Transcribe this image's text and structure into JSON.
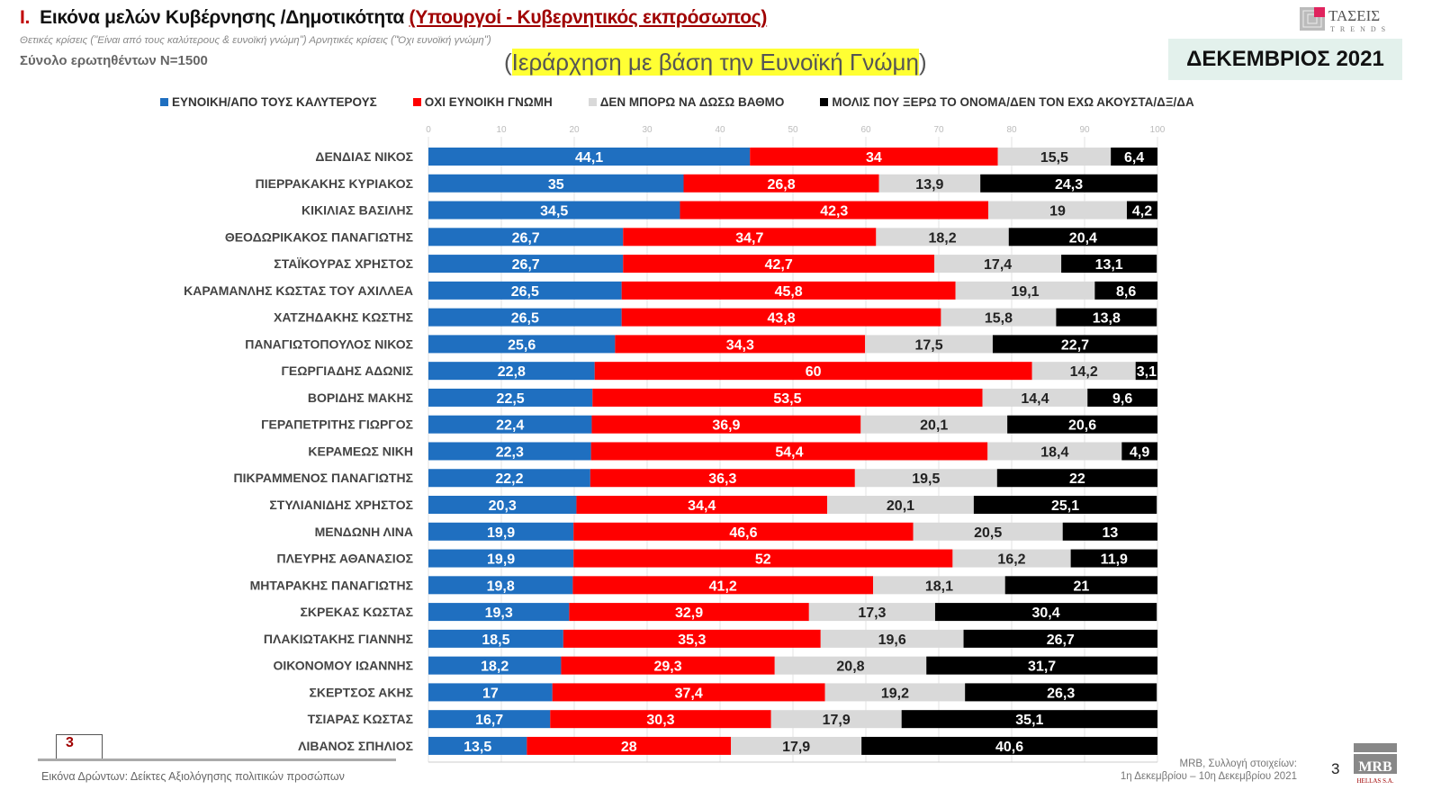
{
  "header": {
    "title_num": "I.",
    "title": "Εικόνα μελών Κυβέρνησης /Δημοτικότητα",
    "title_sub": "(Υπουργοί - Κυβερνητικός εκπρόσωπος)",
    "note": "Θετικές κρίσεις (\"Είναι από τους καλύτερους & ευνοϊκή γνώμη\")  Αρνητικές κρίσεις (\"Όχι ευνοϊκή γνώμη\")",
    "sample": "Σύνολο ερωτηθέντων Ν=1500",
    "rank_open": "(",
    "rank": "Ιεράρχηση με βάση την Ευνοϊκή Γνώμη",
    "rank_close": ")",
    "month": "ΔΕΚΕΜΒΡΙΟΣ 2021",
    "logo_text": "ΤΑΣΕΙΣ TRENDS"
  },
  "footer": {
    "page_box": "3",
    "caption": "Εικόνα Δρώντων: Δείκτες Αξιολόγησης πολιτικών προσώπων",
    "source_line1": "MRB, Συλλογή στοιχείων:",
    "source_line2": "1η Δεκεμβρίου – 10η Δεκεμβρίου 2021",
    "page_number": "3",
    "mrb_logo": "MRB HELLAS S.A."
  },
  "chart_data": {
    "type": "bar",
    "orientation": "horizontal-stacked",
    "xlim": [
      0,
      100
    ],
    "xticks": [
      0,
      10,
      20,
      30,
      40,
      50,
      60,
      70,
      80,
      90,
      100
    ],
    "grid": true,
    "legend_position": "top",
    "categories": [
      "ΔΕΝΔΙΑΣ ΝΙΚΟΣ",
      "ΠΙΕΡΡΑΚΑΚΗΣ ΚΥΡΙΑΚΟΣ",
      "ΚΙΚΙΛΙΑΣ ΒΑΣΙΛΗΣ",
      "ΘΕΟΔΩΡΙΚΑΚΟΣ ΠΑΝΑΓΙΩΤΗΣ",
      "ΣΤΑΪΚΟΥΡΑΣ ΧΡΗΣΤΟΣ",
      "ΚΑΡΑΜΑΝΛΗΣ ΚΩΣΤΑΣ ΤΟΥ ΑΧΙΛΛΕΑ",
      "ΧΑΤΖΗΔΑΚΗΣ ΚΩΣΤΗΣ",
      "ΠΑΝΑΓΙΩΤΟΠΟΥΛΟΣ ΝΙΚΟΣ",
      "ΓΕΩΡΓΙΑΔΗΣ ΑΔΩΝΙΣ",
      "ΒΟΡΙΔΗΣ ΜΑΚΗΣ",
      "ΓΕΡΑΠΕΤΡΙΤΗΣ ΓΙΩΡΓΟΣ",
      "ΚΕΡΑΜΕΩΣ ΝΙΚΗ",
      "ΠΙΚΡΑΜΜΕΝΟΣ ΠΑΝΑΓΙΩΤΗΣ",
      "ΣΤΥΛΙΑΝΙΔΗΣ ΧΡΗΣΤΟΣ",
      "ΜΕΝΔΩΝΗ ΛΙΝΑ",
      "ΠΛΕΥΡΗΣ ΑΘΑΝΑΣΙΟΣ",
      "ΜΗΤΑΡΑΚΗΣ ΠΑΝΑΓΙΩΤΗΣ",
      "ΣΚΡΕΚΑΣ ΚΩΣΤΑΣ",
      "ΠΛΑΚΙΩΤΑΚΗΣ ΓΙΑΝΝΗΣ",
      "ΟΙΚΟΝΟΜΟΥ ΙΩΑΝΝΗΣ",
      "ΣΚΕΡΤΣΟΣ ΑΚΗΣ",
      "ΤΣΙΑΡΑΣ ΚΩΣΤΑΣ",
      "ΛΙΒΑΝΟΣ ΣΠΗΛΙΟΣ"
    ],
    "series": [
      {
        "name": "ΕΥΝΟΙΚΗ/ΑΠΟ ΤΟΥΣ ΚΑΛΥΤΕΡΟΥΣ",
        "color": "#1f6fc0",
        "label_color": "#ffffff",
        "values": [
          44.1,
          35,
          34.5,
          26.7,
          26.7,
          26.5,
          26.5,
          25.6,
          22.8,
          22.5,
          22.4,
          22.3,
          22.2,
          20.3,
          19.9,
          19.9,
          19.8,
          19.3,
          18.5,
          18.2,
          17,
          16.7,
          13.5
        ]
      },
      {
        "name": "ΟΧΙ ΕΥΝΟΙΚΗ ΓΝΩΜΗ",
        "color": "#ff0000",
        "label_color": "#ffffff",
        "values": [
          34,
          26.8,
          42.3,
          34.7,
          42.7,
          45.8,
          43.8,
          34.3,
          60,
          53.5,
          36.9,
          54.4,
          36.3,
          34.4,
          46.6,
          52,
          41.2,
          32.9,
          35.3,
          29.3,
          37.4,
          30.3,
          28
        ]
      },
      {
        "name": "ΔΕΝ ΜΠΟΡΩ ΝΑ ΔΩΣΩ ΒΑΘΜΟ",
        "color": "#d9d9d9",
        "label_color": "#222222",
        "values": [
          15.5,
          13.9,
          19,
          18.2,
          17.4,
          19.1,
          15.8,
          17.5,
          14.2,
          14.4,
          20.1,
          18.4,
          19.5,
          20.1,
          20.5,
          16.2,
          18.1,
          17.3,
          19.6,
          20.8,
          19.2,
          17.9,
          17.9
        ]
      },
      {
        "name": "ΜΟΛΙΣ ΠΟΥ ΞΕΡΩ ΤΟ ΟΝΟΜΑ/ΔΕΝ ΤΟΝ ΕΧΩ ΑΚΟΥΣΤΑ/ΔΞ/ΔΑ",
        "color": "#000000",
        "label_color": "#ffffff",
        "values": [
          6.4,
          24.3,
          4.2,
          20.4,
          13.1,
          8.6,
          13.8,
          22.7,
          3.1,
          9.6,
          20.6,
          4.9,
          22,
          25.1,
          13,
          11.9,
          21,
          30.4,
          26.7,
          31.7,
          26.3,
          35.1,
          40.6
        ]
      }
    ]
  }
}
